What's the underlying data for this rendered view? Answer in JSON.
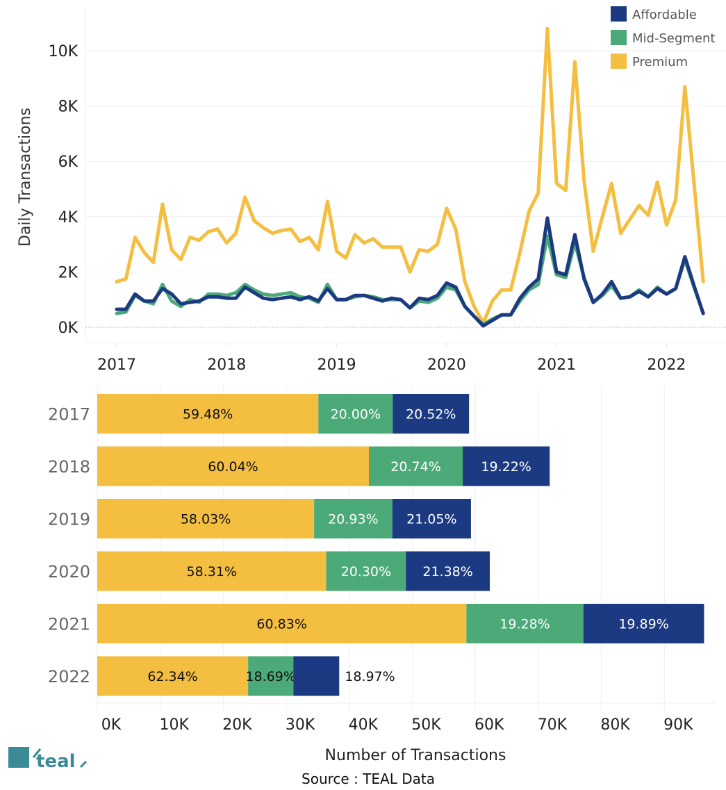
{
  "colors": {
    "affordable": "#1b3a82",
    "mid_segment": "#4caa78",
    "premium": "#f4be40",
    "grid": "#eeeeee",
    "logo": "#3a8a98"
  },
  "legend": [
    {
      "name": "Affordable",
      "color": "#1b3a82"
    },
    {
      "name": "Mid-Segment",
      "color": "#4caa78"
    },
    {
      "name": "Premium",
      "color": "#f4be40"
    }
  ],
  "footer": {
    "logo_text": "teal",
    "source": "Source : TEAL Data"
  },
  "chart_data": [
    {
      "type": "line",
      "title": "",
      "xlabel": "",
      "ylabel": "Daily Transactions",
      "ylim": [
        0,
        10500
      ],
      "yticks": [
        0,
        2000,
        4000,
        6000,
        8000,
        10000
      ],
      "ytick_labels": [
        "0K",
        "2K",
        "4K",
        "6K",
        "8K",
        "10K"
      ],
      "xtick_labels": [
        "2017",
        "2018",
        "2019",
        "2020",
        "2021",
        "2022"
      ],
      "x_start": "2017-01",
      "x_interval": "month",
      "grid": true,
      "legend_position": "top-right",
      "series": [
        {
          "name": "Premium",
          "values": [
            1650,
            1750,
            3250,
            2700,
            2350,
            4450,
            2800,
            2450,
            3250,
            3150,
            3450,
            3550,
            3050,
            3400,
            4700,
            3850,
            3600,
            3400,
            3500,
            3550,
            3100,
            3250,
            2800,
            4550,
            2750,
            2500,
            3350,
            3050,
            3200,
            2900,
            2900,
            2900,
            2000,
            2800,
            2750,
            3000,
            4300,
            3550,
            1650,
            750,
            150,
            950,
            1350,
            1350,
            2700,
            4200,
            4850,
            10800,
            5200,
            4950,
            9600,
            5300,
            2750,
            4000,
            5200,
            3400,
            3900,
            4400,
            4050,
            5250,
            3700,
            4600,
            8700,
            5200,
            1650
          ]
        },
        {
          "name": "Mid-Segment",
          "values": [
            500,
            550,
            1150,
            950,
            850,
            1550,
            950,
            750,
            1000,
            900,
            1200,
            1200,
            1150,
            1250,
            1550,
            1350,
            1200,
            1150,
            1200,
            1250,
            1100,
            1050,
            900,
            1550,
            1000,
            1000,
            1100,
            1150,
            1100,
            1000,
            1000,
            1000,
            700,
            950,
            900,
            1050,
            1450,
            1350,
            750,
            400,
            100,
            300,
            450,
            450,
            950,
            1350,
            1550,
            3300,
            1900,
            1800,
            3050,
            1800,
            900,
            1150,
            1500,
            1050,
            1100,
            1350,
            1100,
            1450,
            1200,
            1400,
            2450,
            1450,
            500
          ]
        },
        {
          "name": "Affordable",
          "values": [
            650,
            650,
            1200,
            950,
            950,
            1400,
            1200,
            850,
            900,
            950,
            1100,
            1100,
            1050,
            1050,
            1450,
            1250,
            1050,
            1000,
            1050,
            1100,
            1000,
            1100,
            950,
            1400,
            1000,
            1000,
            1150,
            1150,
            1050,
            950,
            1050,
            1000,
            700,
            1050,
            1000,
            1150,
            1600,
            1450,
            750,
            400,
            50,
            250,
            450,
            450,
            1050,
            1450,
            1750,
            3950,
            2000,
            1900,
            3350,
            1750,
            900,
            1200,
            1650,
            1050,
            1100,
            1300,
            1100,
            1400,
            1200,
            1400,
            2550,
            1500,
            500
          ]
        }
      ]
    },
    {
      "type": "bar",
      "orientation": "horizontal",
      "stacked": true,
      "title": "",
      "xlabel": "Number of Transactions",
      "ylabel": "",
      "xlim": [
        0,
        97000
      ],
      "xticks": [
        0,
        10000,
        20000,
        30000,
        40000,
        50000,
        60000,
        70000,
        80000,
        90000
      ],
      "xtick_labels": [
        "0K",
        "10K",
        "20K",
        "30K",
        "40K",
        "50K",
        "60K",
        "70K",
        "80K",
        "90K"
      ],
      "categories": [
        "2017",
        "2018",
        "2019",
        "2020",
        "2021",
        "2022"
      ],
      "totals": [
        59000,
        71800,
        59300,
        62300,
        96300,
        38400
      ],
      "series": [
        {
          "name": "Premium",
          "percent": [
            59.48,
            60.04,
            58.03,
            58.31,
            60.83,
            62.34
          ],
          "labels": [
            "59.48%",
            "60.04%",
            "58.03%",
            "58.31%",
            "60.83%",
            "62.34%"
          ]
        },
        {
          "name": "Mid-Segment",
          "percent": [
            20.0,
            20.74,
            20.93,
            20.3,
            19.28,
            18.69
          ],
          "labels": [
            "20.00%",
            "20.74%",
            "20.93%",
            "20.30%",
            "19.28%",
            "18.69%"
          ]
        },
        {
          "name": "Affordable",
          "percent": [
            20.52,
            19.22,
            21.05,
            21.38,
            19.89,
            18.97
          ],
          "labels": [
            "20.52%",
            "19.22%",
            "21.05%",
            "21.38%",
            "19.89%",
            "18.97%"
          ]
        }
      ],
      "grid": true
    }
  ]
}
